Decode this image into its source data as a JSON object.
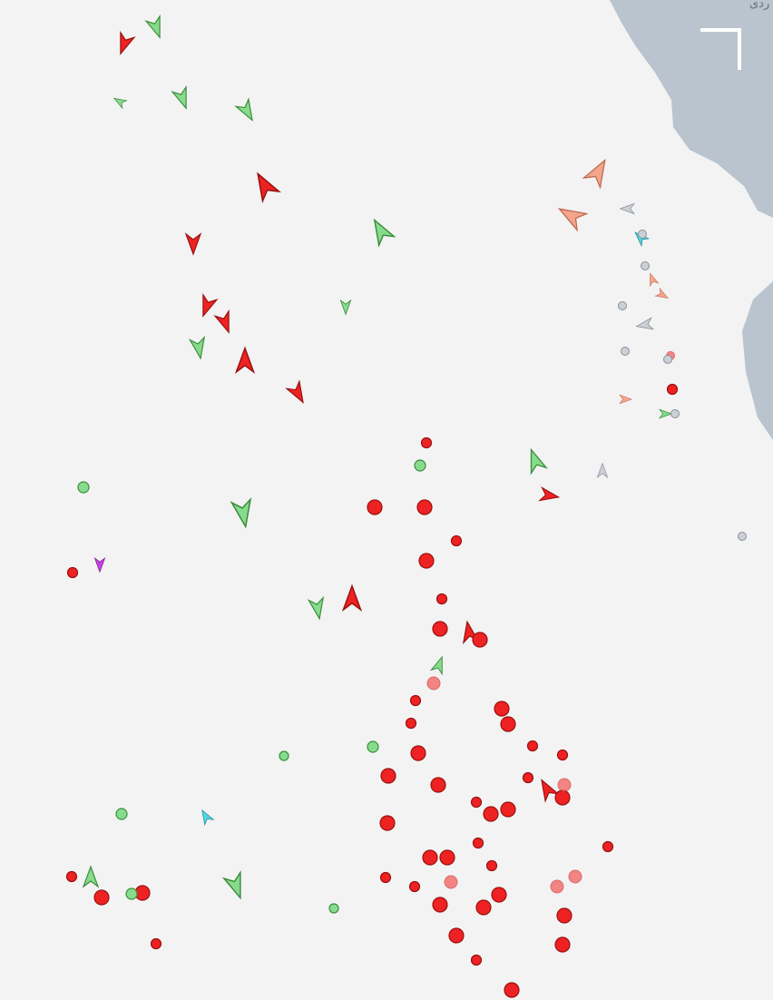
{
  "map": {
    "labels": [
      "ردی"
    ]
  }
}
